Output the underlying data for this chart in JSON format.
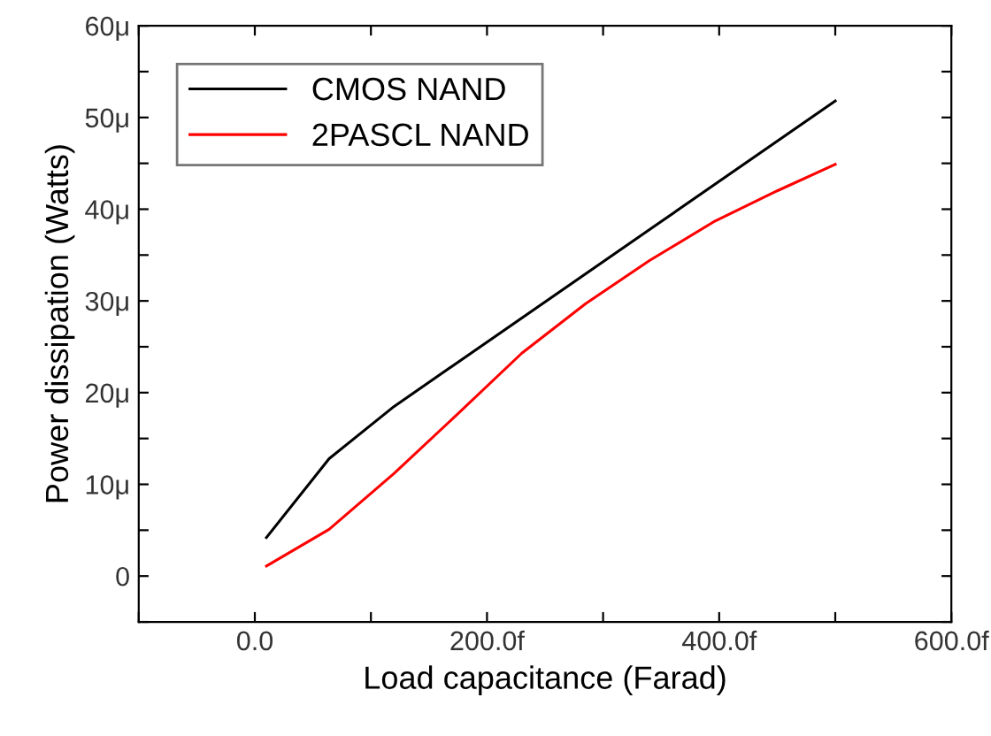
{
  "chart_data": {
    "type": "line",
    "xlabel": "Load capacitance (Farad)",
    "ylabel": "Power dissipation (Watts)",
    "xlim": [
      -100,
      600
    ],
    "ylim": [
      -5,
      60
    ],
    "xticks": [
      {
        "value": -100,
        "label": null
      },
      {
        "value": 0,
        "label": "0.0"
      },
      {
        "value": 100,
        "label": null
      },
      {
        "value": 200,
        "label": "200.0f"
      },
      {
        "value": 300,
        "label": null
      },
      {
        "value": 400,
        "label": "400.0f"
      },
      {
        "value": 500,
        "label": null
      },
      {
        "value": 600,
        "label": "600.0f"
      }
    ],
    "yticks": [
      {
        "value": -5,
        "label": null
      },
      {
        "value": 0,
        "label": "0"
      },
      {
        "value": 5,
        "label": null
      },
      {
        "value": 10,
        "label": "10μ"
      },
      {
        "value": 15,
        "label": null
      },
      {
        "value": 20,
        "label": "20μ"
      },
      {
        "value": 25,
        "label": null
      },
      {
        "value": 30,
        "label": "30μ"
      },
      {
        "value": 35,
        "label": null
      },
      {
        "value": 40,
        "label": "40μ"
      },
      {
        "value": 45,
        "label": null
      },
      {
        "value": 50,
        "label": "50μ"
      },
      {
        "value": 55,
        "label": null
      },
      {
        "value": 60,
        "label": "60μ"
      }
    ],
    "grid": false,
    "legend": "top left",
    "marker": "none",
    "line_style": "solid",
    "series": [
      {
        "name": "CMOS NAND",
        "color": "#000000",
        "x": [
          10,
          64,
          120,
          500
        ],
        "values": [
          4.2,
          12.8,
          18.5,
          51.8
        ]
      },
      {
        "name": "2PASCL NAND",
        "color": "#ff0000",
        "x": [
          10,
          64,
          120,
          175,
          230,
          285,
          340,
          395,
          450,
          500
        ],
        "values": [
          1.1,
          5.1,
          11.2,
          17.7,
          24.3,
          29.7,
          34.4,
          38.6,
          42.0,
          44.9
        ]
      }
    ]
  }
}
